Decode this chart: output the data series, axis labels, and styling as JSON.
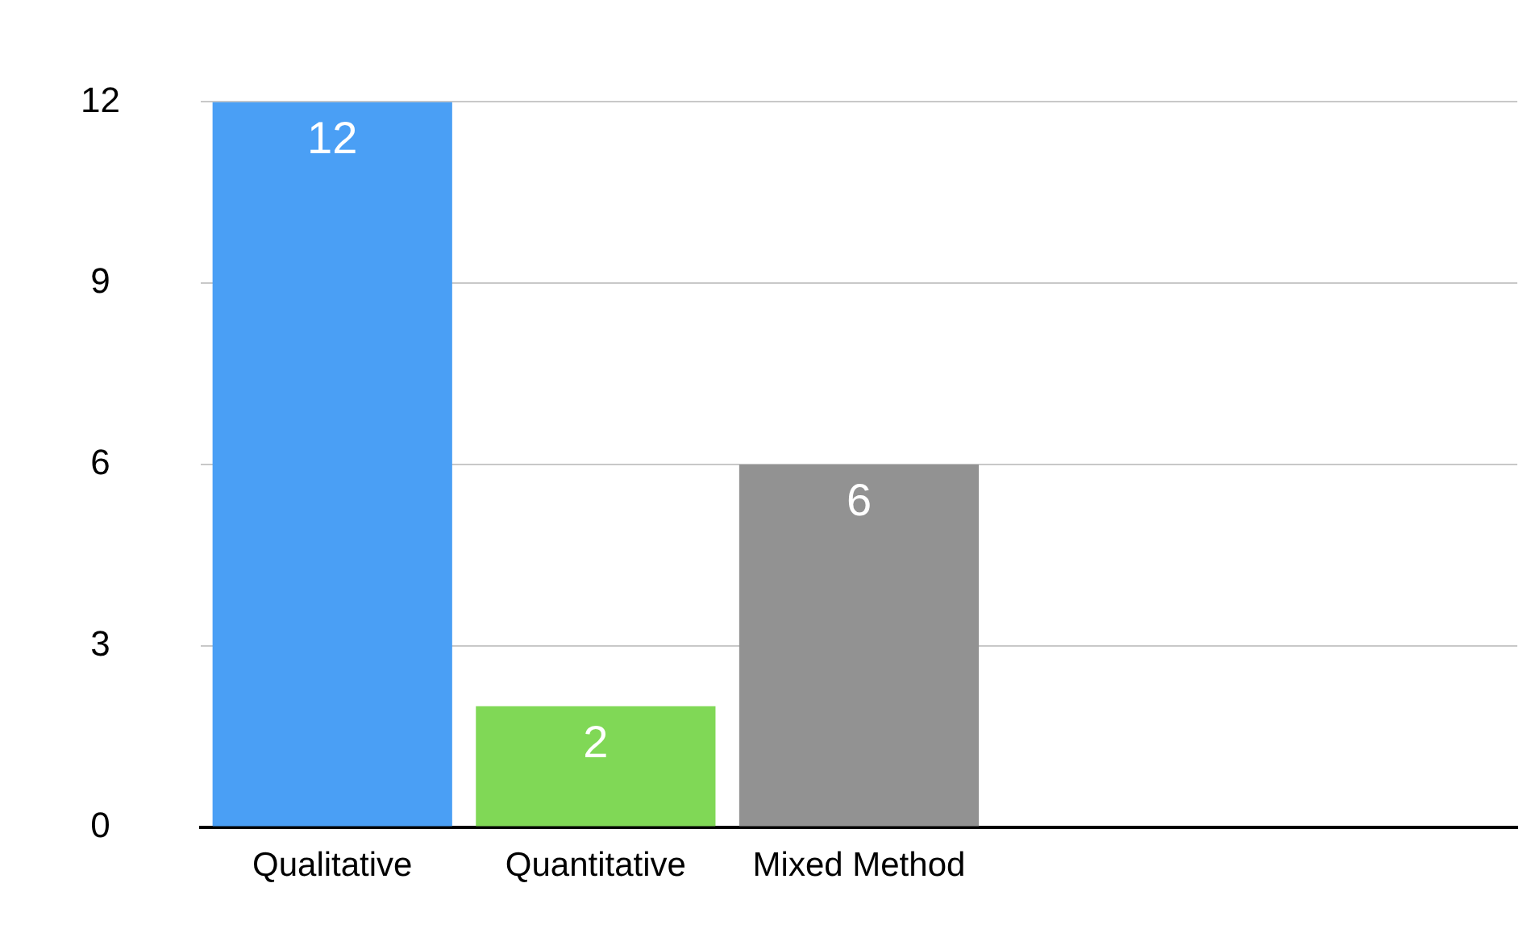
{
  "chart_data": {
    "type": "bar",
    "categories": [
      "Qualitative",
      "Quantitative",
      "Mixed Method",
      null,
      null
    ],
    "values": [
      12,
      2,
      6,
      null,
      null
    ],
    "colors": [
      "#4a9ff5",
      "#80d856",
      "#929292",
      null,
      null
    ],
    "ylim": [
      0,
      12
    ],
    "yticks": [
      0,
      3,
      6,
      9,
      12
    ],
    "grid": "y",
    "data_labels": true,
    "legend": false
  }
}
